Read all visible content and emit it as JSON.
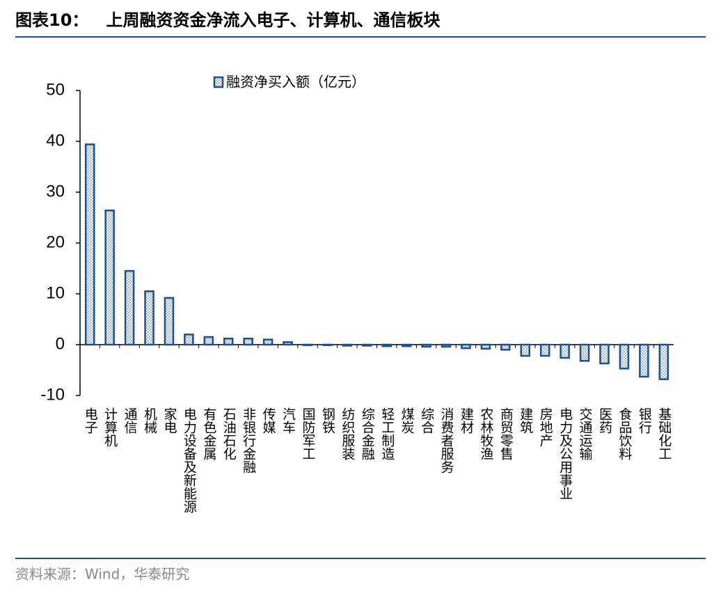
{
  "chart_data": {
    "type": "bar",
    "title": "图表10：   上周融资资金净流入电子、计算机、通信板块",
    "source": "资料来源：Wind，华泰研究",
    "categories": [
      "电子",
      "计算机",
      "通信",
      "机械",
      "家电",
      "电力设备及新能源",
      "有色金属",
      "石油石化",
      "非银行金融",
      "传媒",
      "汽车",
      "国防军工",
      "钢铁",
      "纺织服装",
      "综合金融",
      "轻工制造",
      "煤炭",
      "综合",
      "消费者服务",
      "建材",
      "农林牧渔",
      "商贸零售",
      "建筑",
      "房地产",
      "电力及公用事业",
      "交通运输",
      "医药",
      "食品饮料",
      "银行",
      "基础化工"
    ],
    "series": [
      {
        "name": "融资净买入额（亿元）",
        "color": "#1f4e8c",
        "values": [
          39.4,
          26.4,
          14.5,
          10.5,
          9.2,
          2.0,
          1.5,
          1.2,
          1.2,
          1.0,
          0.5,
          -0.1,
          -0.1,
          -0.2,
          -0.2,
          -0.3,
          -0.3,
          -0.4,
          -0.4,
          -0.7,
          -0.8,
          -1.0,
          -2.2,
          -2.2,
          -2.6,
          -3.2,
          -3.7,
          -4.7,
          -6.3,
          -6.8
        ]
      }
    ],
    "ylim": [
      -10,
      50
    ],
    "yticks": [
      -10,
      0,
      10,
      20,
      30,
      40,
      50
    ]
  }
}
